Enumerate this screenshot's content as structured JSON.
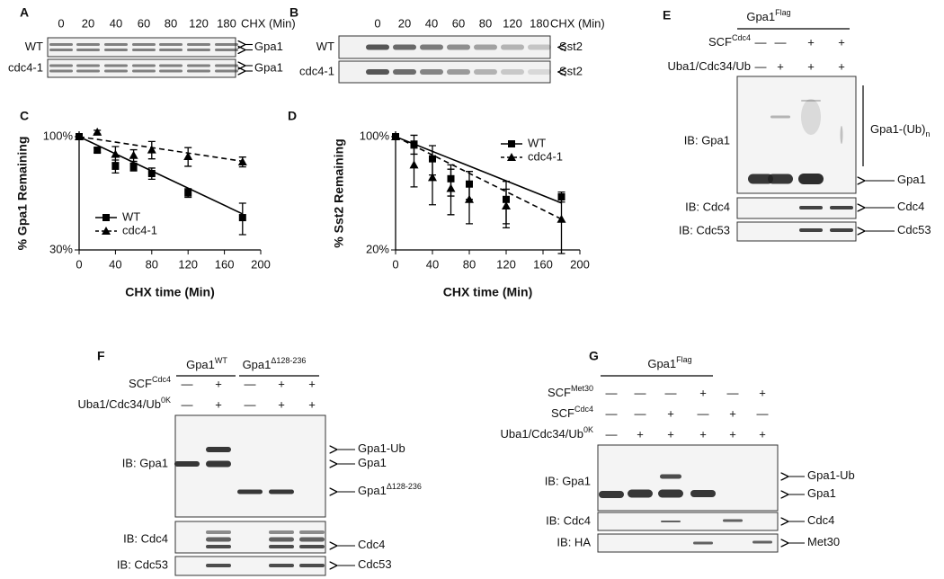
{
  "chart_data": [
    {
      "type": "line",
      "panel": "C",
      "xlabel": "CHX time (Min)",
      "ylabel": "% Gpa1 Remaining",
      "log_y": true,
      "legend": "lower left",
      "x": [
        0,
        20,
        40,
        60,
        80,
        120,
        180
      ],
      "xlim": [
        0,
        200
      ],
      "xticks": [
        0,
        40,
        80,
        120,
        160,
        200
      ],
      "ylim": [
        30,
        100
      ],
      "yticks": [
        {
          "value": 100,
          "label": "100%"
        },
        {
          "value": 30,
          "label": "30%"
        }
      ],
      "series": [
        {
          "name": "WT",
          "color": "#000000",
          "marker": "square",
          "dash": "solid",
          "values": [
            100,
            86.6,
            73,
            72.5,
            67.6,
            55,
            42.3
          ],
          "errors": [
            0,
            2,
            5,
            3,
            4,
            2.5,
            7
          ],
          "trend": [
            100,
            44
          ]
        },
        {
          "name": "cdc4-1",
          "color": "#000000",
          "marker": "triangle",
          "dash": "dashed",
          "values": [
            100,
            105,
            83,
            82,
            87,
            81,
            76.5
          ],
          "errors": [
            0,
            2,
            7,
            5,
            8,
            8,
            4
          ],
          "trend": [
            100,
            77
          ]
        }
      ]
    },
    {
      "type": "line",
      "panel": "D",
      "xlabel": "CHX time (Min)",
      "ylabel": "% Sst2 Remaining",
      "log_y": true,
      "legend": "upper right",
      "x": [
        0,
        20,
        40,
        60,
        80,
        120,
        180
      ],
      "xlim": [
        0,
        200
      ],
      "xticks": [
        0,
        40,
        80,
        120,
        160,
        200
      ],
      "ylim": [
        20,
        100
      ],
      "yticks": [
        {
          "value": 100,
          "label": "100%"
        },
        {
          "value": 20,
          "label": "20%"
        }
      ],
      "series": [
        {
          "name": "WT",
          "color": "#000000",
          "marker": "square",
          "dash": "solid",
          "values": [
            100,
            90,
            73,
            55,
            51,
            41,
            42.5
          ],
          "errors": [
            0,
            12,
            15,
            12,
            10,
            12,
            3
          ],
          "trend": [
            100,
            39
          ]
        },
        {
          "name": "cdc4-1",
          "color": "#000000",
          "marker": "triangle",
          "dash": "dashed",
          "values": [
            100,
            67,
            56,
            48,
            41,
            37.4,
            31
          ],
          "errors": [
            0,
            18,
            18,
            15,
            12,
            10,
            12
          ],
          "trend": [
            100,
            31
          ]
        }
      ]
    }
  ],
  "panels": {
    "A": {
      "letter": "A",
      "times": [
        0,
        20,
        40,
        60,
        80,
        120,
        180
      ],
      "unit": "CHX (Min)",
      "rows": [
        {
          "label": "WT",
          "target": "Gpa1"
        },
        {
          "label": "cdc4-1",
          "target": "Gpa1"
        }
      ]
    },
    "B": {
      "letter": "B",
      "times": [
        0,
        20,
        40,
        60,
        80,
        120,
        180
      ],
      "unit": "CHX (Min)",
      "rows": [
        {
          "label": "WT",
          "target": "Sst2"
        },
        {
          "label": "cdc4-1",
          "target": "Sst2"
        }
      ]
    },
    "E": {
      "letter": "E",
      "groups": [
        {
          "text": "Gpa1",
          "sup": "Flag"
        }
      ],
      "conditions": [
        {
          "text": "SCF",
          "sup": "Cdc4",
          "signs": [
            "—",
            "—",
            "+",
            "+"
          ]
        },
        {
          "text": "Uba1/Cdc34/Ub",
          "signs": [
            "—",
            "+",
            "+",
            "+"
          ]
        }
      ],
      "blots": [
        {
          "label": "IB: Gpa1",
          "bands": [
            {
              "text": "Gpa1-(Ub)",
              "sub": "n"
            },
            {
              "text": "Gpa1"
            }
          ]
        },
        {
          "label": "IB: Cdc4",
          "bands": [
            {
              "text": "Cdc4"
            }
          ]
        },
        {
          "label": "IB: Cdc53",
          "bands": [
            {
              "text": "Cdc53"
            }
          ]
        }
      ]
    },
    "F": {
      "letter": "F",
      "groups": [
        {
          "text": "Gpa1",
          "sup": "WT"
        },
        {
          "text": "Gpa1",
          "sup": "Δ128-236"
        }
      ],
      "conditions": [
        {
          "text": "SCF",
          "sup": "Cdc4",
          "signs": [
            "—",
            "+",
            "—",
            "+",
            "+"
          ]
        },
        {
          "text": "Uba1/Cdc34/Ub",
          "sup": "0K",
          "signs": [
            "—",
            "+",
            "—",
            "+",
            "+"
          ]
        }
      ],
      "blots": [
        {
          "label": "IB: Gpa1",
          "bands": [
            {
              "text": "Gpa1-Ub"
            },
            {
              "text": "Gpa1"
            },
            {
              "text": "Gpa1",
              "sup": "Δ128-236"
            }
          ]
        },
        {
          "label": "IB: Cdc4",
          "bands": [
            {
              "text": "Cdc4"
            }
          ]
        },
        {
          "label": "IB: Cdc53",
          "bands": [
            {
              "text": "Cdc53"
            }
          ]
        }
      ]
    },
    "G": {
      "letter": "G",
      "groups": [
        {
          "text": "Gpa1",
          "sup": "Flag"
        }
      ],
      "conditions": [
        {
          "text": "SCF",
          "sup": "Met30",
          "signs": [
            "—",
            "—",
            "—",
            "+",
            "—",
            "+"
          ]
        },
        {
          "text": "SCF",
          "sup": "Cdc4",
          "signs": [
            "—",
            "—",
            "+",
            "—",
            "+",
            "—"
          ]
        },
        {
          "text": "Uba1/Cdc34/Ub",
          "sup": "0K",
          "signs": [
            "—",
            "+",
            "+",
            "+",
            "+",
            "+"
          ]
        }
      ],
      "blots": [
        {
          "label": "IB: Gpa1",
          "bands": [
            {
              "text": "Gpa1-Ub"
            },
            {
              "text": "Gpa1"
            }
          ]
        },
        {
          "label": "IB: Cdc4",
          "bands": [
            {
              "text": "Cdc4"
            }
          ]
        },
        {
          "label": "IB: HA",
          "bands": [
            {
              "text": "Met30"
            }
          ]
        }
      ]
    }
  }
}
